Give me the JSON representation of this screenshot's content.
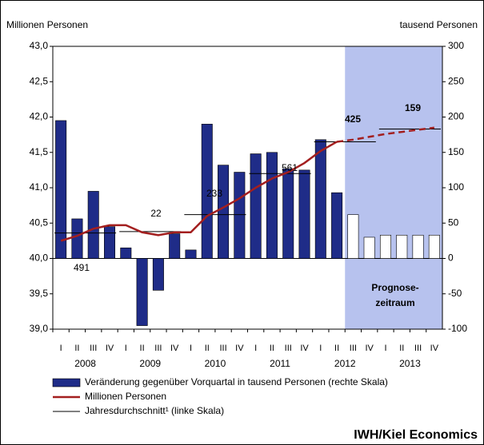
{
  "chart_data": {
    "type": "bar",
    "y_axis_label": "Millionen Personen",
    "y2_axis_label": "tausend Personen",
    "categories": [
      "I",
      "II",
      "III",
      "IV",
      "I",
      "II",
      "III",
      "IV",
      "I",
      "II",
      "III",
      "IV",
      "I",
      "II",
      "III",
      "IV",
      "I",
      "II",
      "III",
      "IV",
      "I",
      "II",
      "III",
      "IV"
    ],
    "years": [
      "2008",
      "2009",
      "2010",
      "2011",
      "2012",
      "2013"
    ],
    "ylim": [
      39.0,
      43.0
    ],
    "yticks": [
      {
        "value": 39.0,
        "label": "39,0"
      },
      {
        "value": 39.5,
        "label": "39,5"
      },
      {
        "value": 40.0,
        "label": "40,0"
      },
      {
        "value": 40.5,
        "label": "40,5"
      },
      {
        "value": 41.0,
        "label": "41,0"
      },
      {
        "value": 41.5,
        "label": "41,5"
      },
      {
        "value": 42.0,
        "label": "42,0"
      },
      {
        "value": 42.5,
        "label": "42,5"
      },
      {
        "value": 43.0,
        "label": "43,0"
      }
    ],
    "y2lim": [
      -100,
      300
    ],
    "y2ticks": [
      -100,
      -50,
      0,
      50,
      100,
      150,
      200,
      250,
      300
    ],
    "bars": {
      "name": "Veränderung gegenüber Vorquartal in tausend Personen (rechte Skala)",
      "axis": "y2",
      "color": "#1f2c88",
      "colors": [
        "#1f2c88",
        "#1f2c88",
        "#1f2c88",
        "#1f2c88",
        "#1f2c88",
        "#1f2c88",
        "#1f2c88",
        "#1f2c88",
        "#1f2c88",
        "#1f2c88",
        "#1f2c88",
        "#1f2c88",
        "#1f2c88",
        "#1f2c88",
        "#1f2c88",
        "#1f2c88",
        "#1f2c88",
        "#1f2c88",
        "#ffffff",
        "#ffffff",
        "#ffffff",
        "#ffffff",
        "#ffffff",
        "#ffffff"
      ],
      "values": [
        195,
        56,
        95,
        45,
        15,
        -95,
        -45,
        35,
        12,
        190,
        132,
        122,
        148,
        150,
        127,
        125,
        168,
        93,
        62,
        30,
        33,
        33,
        33,
        33
      ]
    },
    "line": {
      "name": "Millionen Personen",
      "color": "#a31f1f",
      "values": [
        40.25,
        40.32,
        40.42,
        40.47,
        40.47,
        40.37,
        40.33,
        40.37,
        40.37,
        40.6,
        40.72,
        40.85,
        41.0,
        41.13,
        41.22,
        41.35,
        41.52,
        41.65,
        null,
        null,
        null,
        null,
        null,
        null
      ],
      "forecast_values": [
        null,
        null,
        null,
        null,
        null,
        null,
        null,
        null,
        null,
        null,
        null,
        null,
        null,
        null,
        null,
        null,
        null,
        41.65,
        41.68,
        41.72,
        41.76,
        41.79,
        41.82,
        41.85
      ]
    },
    "annual_average": {
      "name": "Jahresdurchschnitt¹ (linke Skala)",
      "color": "#000000",
      "values": [
        40.36,
        40.38,
        40.62,
        41.2,
        41.65,
        41.83
      ]
    },
    "annual_changes": [
      "491",
      "22",
      "233",
      "561",
      "425",
      "159"
    ],
    "forecast_label": [
      "Prognose-",
      "zeitraum"
    ],
    "forecast_color": "#b7c2ee",
    "source": "IWH/Kiel Economics"
  }
}
